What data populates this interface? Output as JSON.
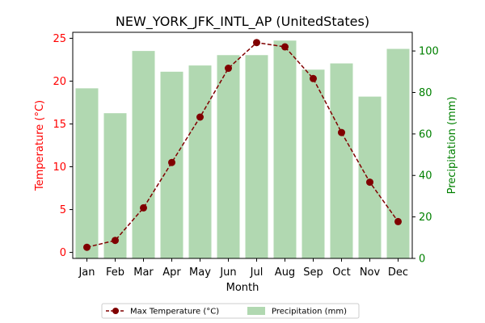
{
  "chart_data": {
    "type": "bar+line",
    "title": "NEW_YORK_JFK_INTL_AP (UnitedStates)",
    "xlabel": "Month",
    "ylabel_left": "Temperature (°C)",
    "ylabel_right": "Precipitation (mm)",
    "categories": [
      "Jan",
      "Feb",
      "Mar",
      "Apr",
      "May",
      "Jun",
      "Jul",
      "Aug",
      "Sep",
      "Oct",
      "Nov",
      "Dec"
    ],
    "ylim_left": [
      -0.7,
      25.7
    ],
    "ylim_right": [
      0,
      109
    ],
    "yticks_left": [
      0,
      5,
      10,
      15,
      20,
      25
    ],
    "yticks_right": [
      0,
      20,
      40,
      60,
      80,
      100
    ],
    "series": [
      {
        "name": "Max Temperature (°C)",
        "kind": "line",
        "axis": "left",
        "color": "#800000",
        "values": [
          0.6,
          1.4,
          5.2,
          10.5,
          15.8,
          21.5,
          24.5,
          24.0,
          20.3,
          14.0,
          8.2,
          3.6
        ]
      },
      {
        "name": "Precipitation (mm)",
        "kind": "bar",
        "axis": "right",
        "color": "#b1d8b1",
        "values": [
          82,
          70,
          100,
          90,
          93,
          98,
          98,
          105,
          91,
          94,
          78,
          101
        ]
      }
    ],
    "left_axis_color": "#ff0000",
    "right_axis_color": "#008000",
    "legend_position": "bottom-center",
    "grid": false
  }
}
